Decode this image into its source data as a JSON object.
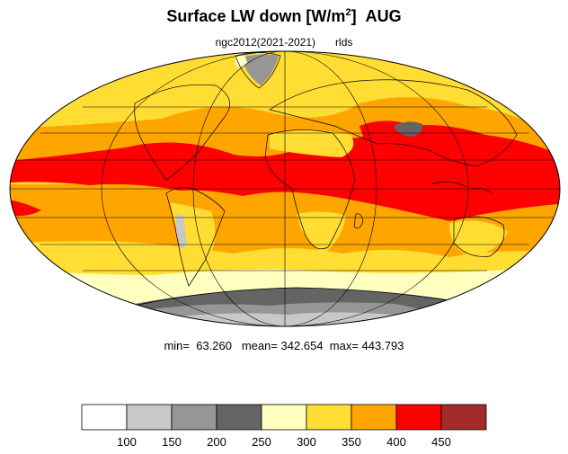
{
  "title": {
    "main": "Surface LW down [W/m",
    "superscript": "2",
    "bracket_close": "]",
    "month": "AUG"
  },
  "subtitle": {
    "run": "ngc2012(2021-2021)",
    "variable": "rlds"
  },
  "stats": {
    "text": "min=  63.260   mean= 342.654  max= 443.793"
  },
  "colorbar": {
    "levels": [
      "100",
      "150",
      "200",
      "250",
      "300",
      "350",
      "400",
      "450"
    ],
    "colors": [
      "#ffffff",
      "#c8c8c8",
      "#969696",
      "#646464",
      "#ffffc0",
      "#ffdd33",
      "#ffa500",
      "#ff0000",
      "#a52a2a"
    ]
  },
  "map": {
    "projection": "Mollweide",
    "region": "Global",
    "background_color": "#ffdd33",
    "tropics_color": "#ff0000",
    "subtropics_color": "#ffa500",
    "polar_color": "#646464",
    "gridlines": true,
    "coastlines": true
  }
}
